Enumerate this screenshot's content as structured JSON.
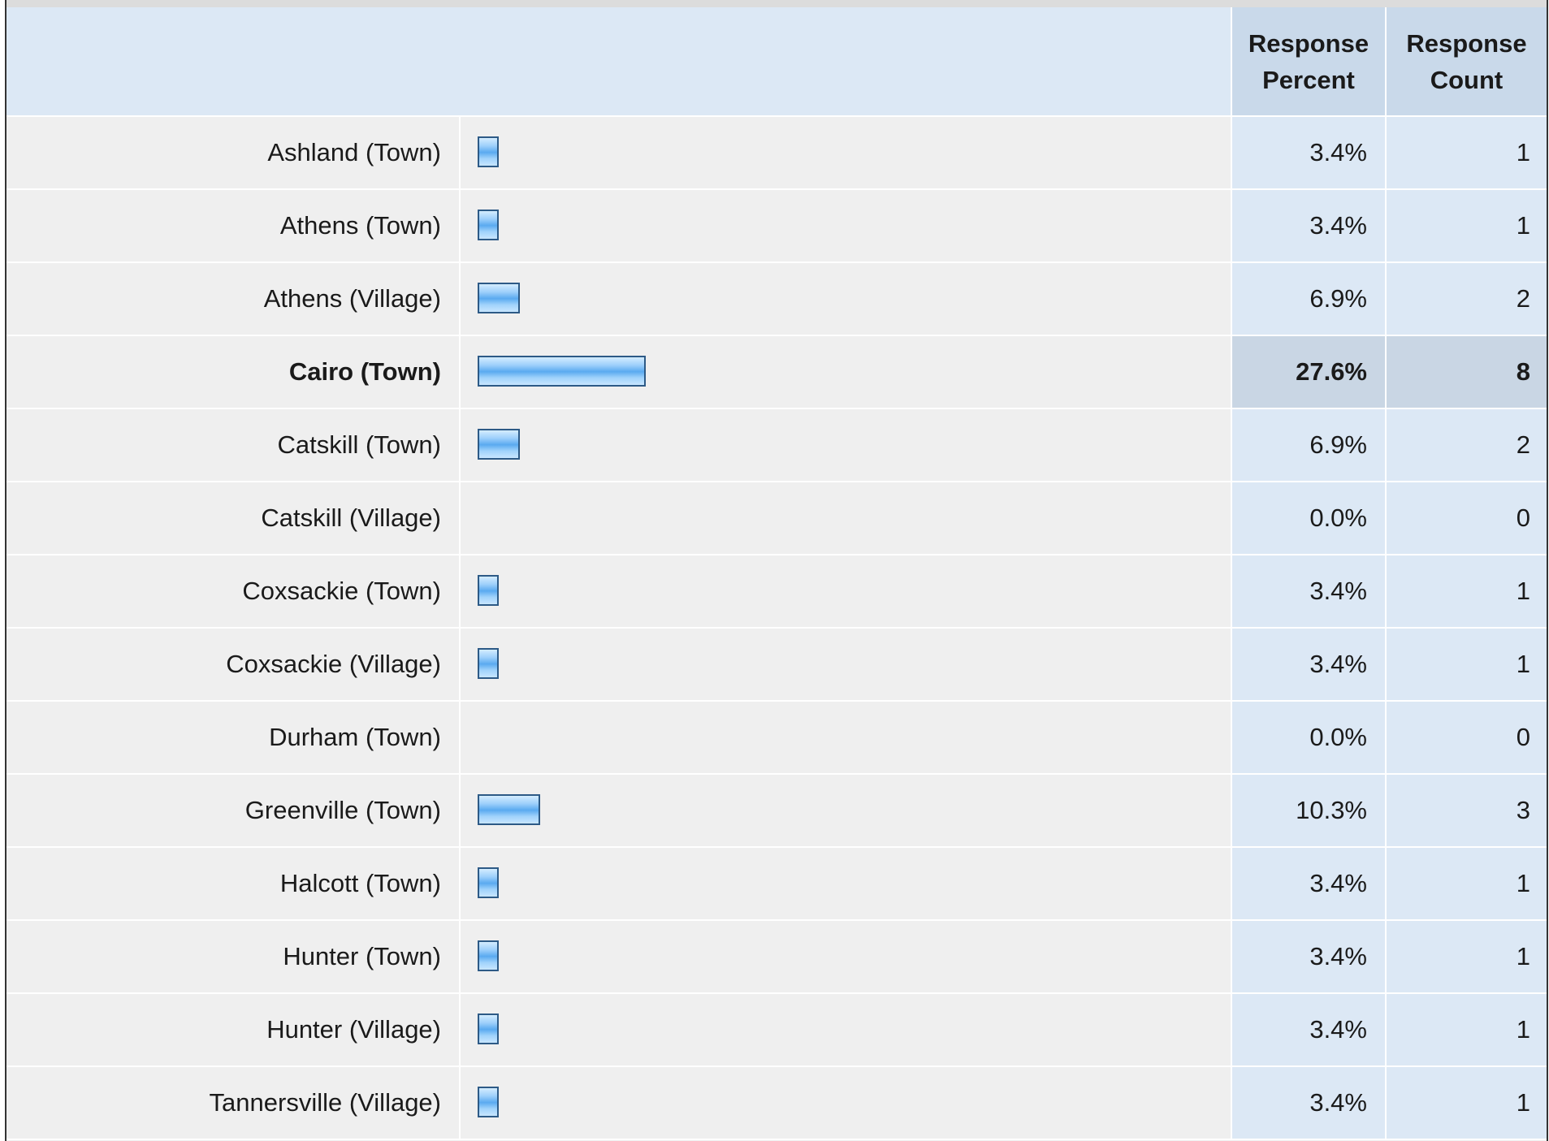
{
  "chart_data": {
    "type": "bar",
    "columns": {
      "percent": "Response\nPercent",
      "count": "Response\nCount"
    },
    "rows": [
      {
        "label": "Ashland (Town)",
        "percent": "3.4%",
        "count": "1",
        "value": 3.4
      },
      {
        "label": "Athens (Town)",
        "percent": "3.4%",
        "count": "1",
        "value": 3.4
      },
      {
        "label": "Athens (Village)",
        "percent": "6.9%",
        "count": "2",
        "value": 6.9
      },
      {
        "label": "Cairo (Town)",
        "percent": "27.6%",
        "count": "8",
        "value": 27.6,
        "highlight": true
      },
      {
        "label": "Catskill (Town)",
        "percent": "6.9%",
        "count": "2",
        "value": 6.9
      },
      {
        "label": "Catskill (Village)",
        "percent": "0.0%",
        "count": "0",
        "value": 0.0
      },
      {
        "label": "Coxsackie (Town)",
        "percent": "3.4%",
        "count": "1",
        "value": 3.4
      },
      {
        "label": "Coxsackie (Village)",
        "percent": "3.4%",
        "count": "1",
        "value": 3.4
      },
      {
        "label": "Durham (Town)",
        "percent": "0.0%",
        "count": "0",
        "value": 0.0
      },
      {
        "label": "Greenville (Town)",
        "percent": "10.3%",
        "count": "3",
        "value": 10.3
      },
      {
        "label": "Halcott (Town)",
        "percent": "3.4%",
        "count": "1",
        "value": 3.4
      },
      {
        "label": "Hunter (Town)",
        "percent": "3.4%",
        "count": "1",
        "value": 3.4
      },
      {
        "label": "Hunter (Village)",
        "percent": "3.4%",
        "count": "1",
        "value": 3.4
      },
      {
        "label": "Tannersville (Village)",
        "percent": "3.4%",
        "count": "1",
        "value": 3.4
      }
    ],
    "xlim": [
      0,
      100
    ]
  },
  "colors": {
    "bar_fill": "#5aaaf0",
    "bar_border": "#2d5a86",
    "header_bg": "#dce8f5",
    "highlight_bg": "#c9d6e4"
  }
}
